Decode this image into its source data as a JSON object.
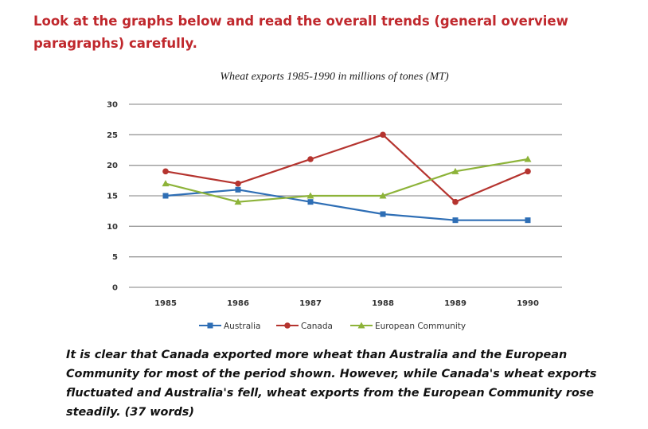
{
  "heading": "Look at the graphs below and read the overall trends (general overview paragraphs) carefully.",
  "summary": "It is clear that Canada exported more wheat than Australia and the European Community for most of the period shown. However, while Canada's wheat exports fluctuated and Australia's fell, wheat exports from the European Community rose steadily. (37 words)",
  "chart_data": {
    "type": "line",
    "title": "Wheat exports 1985-1990 in millions of tones (MT)",
    "xlabel": "",
    "ylabel": "",
    "categories": [
      "1985",
      "1986",
      "1987",
      "1988",
      "1989",
      "1990"
    ],
    "ylim": [
      0,
      30
    ],
    "yticks": [
      0,
      5,
      10,
      15,
      20,
      25,
      30
    ],
    "grid": true,
    "legend_position": "bottom",
    "series": [
      {
        "name": "Australia",
        "values": [
          15,
          16,
          14,
          12,
          11,
          11
        ],
        "color": "#2e6eb5",
        "marker": "square"
      },
      {
        "name": "Canada",
        "values": [
          19,
          17,
          21,
          25,
          14,
          19
        ],
        "color": "#b5342f",
        "marker": "circle"
      },
      {
        "name": "European Community",
        "values": [
          17,
          14,
          15,
          15,
          19,
          21
        ],
        "color": "#8db339",
        "marker": "triangle"
      }
    ]
  }
}
